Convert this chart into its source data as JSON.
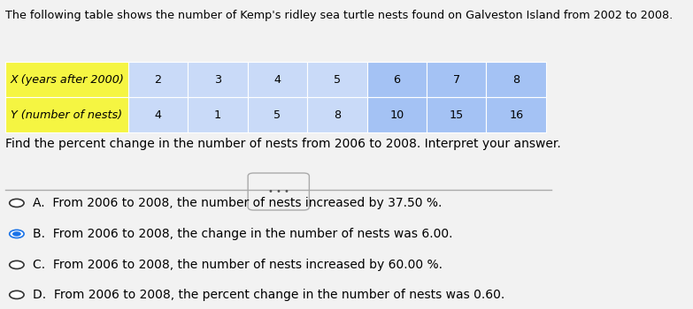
{
  "title": "The following table shows the number of Kemp's ridley sea turtle nests found on Galveston Island from 2002 to 2008.",
  "table_header_label_col": [
    "X (years after 2000)",
    "Y (number of nests)"
  ],
  "table_x_values": [
    2,
    3,
    4,
    5,
    6,
    7,
    8
  ],
  "table_y_values": [
    4,
    1,
    5,
    8,
    10,
    15,
    16
  ],
  "question": "Find the percent change in the number of nests from 2006 to 2008. Interpret your answer.",
  "choices": [
    "A.  From 2006 to 2008, the number of nests increased by 37.50 %.",
    "B.  From 2006 to 2008, the change in the number of nests was 6.00.",
    "C.  From 2006 to 2008, the number of nests increased by 60.00 %.",
    "D.  From 2006 to 2008, the percent change in the number of nests was 0.60."
  ],
  "selected_choice": 1,
  "label_col_bg": "#f5f542",
  "data_col_bg_light": "#c9daf8",
  "data_col_bg_dark": "#a4c2f4",
  "bg_color": "#f2f2f2",
  "text_color": "#000000",
  "title_fontsize": 9.2,
  "table_fontsize": 9.2,
  "choice_fontsize": 10,
  "question_fontsize": 10
}
